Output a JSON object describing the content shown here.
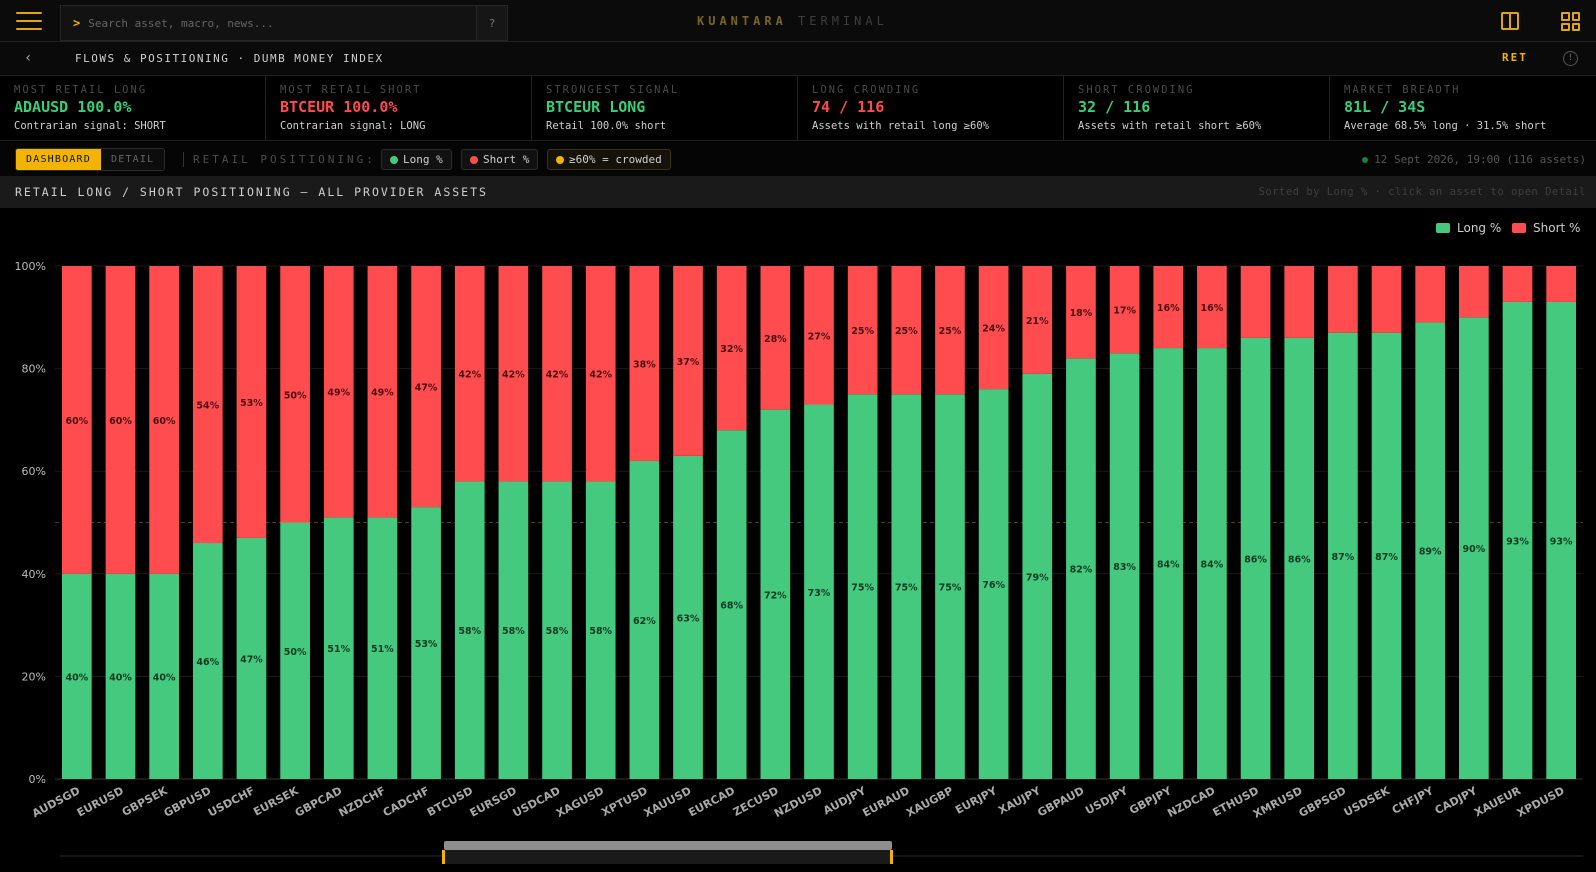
{
  "topbar": {
    "search_prompt": ">",
    "search_placeholder": "Search asset, macro, news...",
    "help_label": "?",
    "brand_primary": "KUANTARA",
    "brand_secondary": "TERMINAL",
    "accent_color": "#f2b400"
  },
  "subbar": {
    "back_label": "‹",
    "breadcrumb": "FLOWS & POSITIONING · DUMB MONEY INDEX",
    "ret_label": "RET",
    "info_label": "!"
  },
  "kpis": [
    {
      "label": "MOST RETAIL LONG",
      "value": "ADAUSD 100.0%",
      "sub": "Contrarian signal: SHORT",
      "tone": "green"
    },
    {
      "label": "MOST RETAIL SHORT",
      "value": "BTCEUR 100.0%",
      "sub": "Contrarian signal: LONG",
      "tone": "red"
    },
    {
      "label": "STRONGEST SIGNAL",
      "value": "BTCEUR LONG",
      "sub": "Retail 100.0% short",
      "tone": "green"
    },
    {
      "label": "LONG CROWDING",
      "value": "74 / 116",
      "sub": "Assets with retail long ≥60%",
      "tone": "red"
    },
    {
      "label": "SHORT CROWDING",
      "value": "32 / 116",
      "sub": "Assets with retail short ≥60%",
      "tone": "green"
    },
    {
      "label": "MARKET BREADTH",
      "value": "81L / 34S",
      "sub": "Average 68.5% long · 31.5% short",
      "tone": "green"
    }
  ],
  "controls": {
    "dashboard_label": "DASHBOARD",
    "detail_label": "DETAIL",
    "positioning_label": "RETAIL POSITIONING:",
    "chip_long": "Long %",
    "chip_short": "Short %",
    "chip_crowded": "≥60% = crowded",
    "timestamp": "12 Sept 2026, 19:00 (116 assets)"
  },
  "section": {
    "title": "RETAIL LONG / SHORT POSITIONING — ALL PROVIDER ASSETS",
    "hint": "Sorted by Long % · click an asset to open Detail"
  },
  "colors": {
    "long": "#45c97e",
    "short": "#ff4d4f",
    "crowded": "#f2b400"
  },
  "chart_data": {
    "type": "bar",
    "stacked": true,
    "categories": [
      "AUDSGD",
      "EURUSD",
      "GBPSEK",
      "GBPUSD",
      "USDCHF",
      "EURSEK",
      "GBPCAD",
      "NZDCHF",
      "CADCHF",
      "BTCUSD",
      "EURSGD",
      "USDCAD",
      "XAGUSD",
      "XPTUSD",
      "XAUUSD",
      "EURCAD",
      "ZECUSD",
      "NZDUSD",
      "AUDJPY",
      "EURAUD",
      "XAUGBP",
      "EURJPY",
      "XAUJPY",
      "GBPAUD",
      "USDJPY",
      "GBPJPY",
      "NZDCAD",
      "ETHUSD",
      "XMRUSD",
      "GBPSGD",
      "USDSEK",
      "CHFJPY",
      "CADJPY",
      "XAUEUR",
      "XPDUSD"
    ],
    "series": [
      {
        "name": "Long %",
        "values": [
          40,
          40,
          40,
          46,
          47,
          50,
          51,
          51,
          53,
          58,
          58,
          58,
          58,
          62,
          63,
          68,
          72,
          73,
          75,
          75,
          75,
          76,
          79,
          82,
          83,
          84,
          84,
          86,
          86,
          87,
          87,
          89,
          90,
          93,
          93
        ]
      },
      {
        "name": "Short %",
        "values": [
          60,
          60,
          60,
          54,
          53,
          50,
          49,
          49,
          47,
          42,
          42,
          42,
          42,
          38,
          37,
          32,
          28,
          27,
          25,
          25,
          25,
          24,
          21,
          18,
          17,
          16,
          16,
          14,
          14,
          13,
          13,
          11,
          10,
          7,
          7
        ]
      }
    ],
    "long_labels": [
      "40%",
      "40%",
      "40%",
      "46%",
      "47%",
      "50%",
      "51%",
      "51%",
      "53%",
      "58%",
      "58%",
      "58%",
      "58%",
      "62%",
      "63%",
      "68%",
      "72%",
      "73%",
      "75%",
      "75%",
      "75%",
      "76%",
      "79%",
      "82%",
      "83%",
      "84%",
      "84%",
      "86%",
      "86%",
      "87%",
      "87%",
      "89%",
      "90%",
      "93%",
      "93%"
    ],
    "short_labels": [
      "60%",
      "60%",
      "60%",
      "54%",
      "53%",
      "50%",
      "49%",
      "49%",
      "47%",
      "42%",
      "42%",
      "42%",
      "42%",
      "38%",
      "37%",
      "32%",
      "28%",
      "27%",
      "25%",
      "25%",
      "25%",
      "24%",
      "21%",
      "18%",
      "17%",
      "16%",
      "16%",
      "",
      "",
      "",
      "",
      "",
      "",
      "",
      ""
    ],
    "yticks": [
      "0%",
      "20%",
      "40%",
      "60%",
      "80%",
      "100%"
    ],
    "ylim": [
      0,
      100
    ],
    "reference_line": 50,
    "legend": [
      "Long %",
      "Short %"
    ],
    "legend_position": "top-right",
    "grid": true
  }
}
